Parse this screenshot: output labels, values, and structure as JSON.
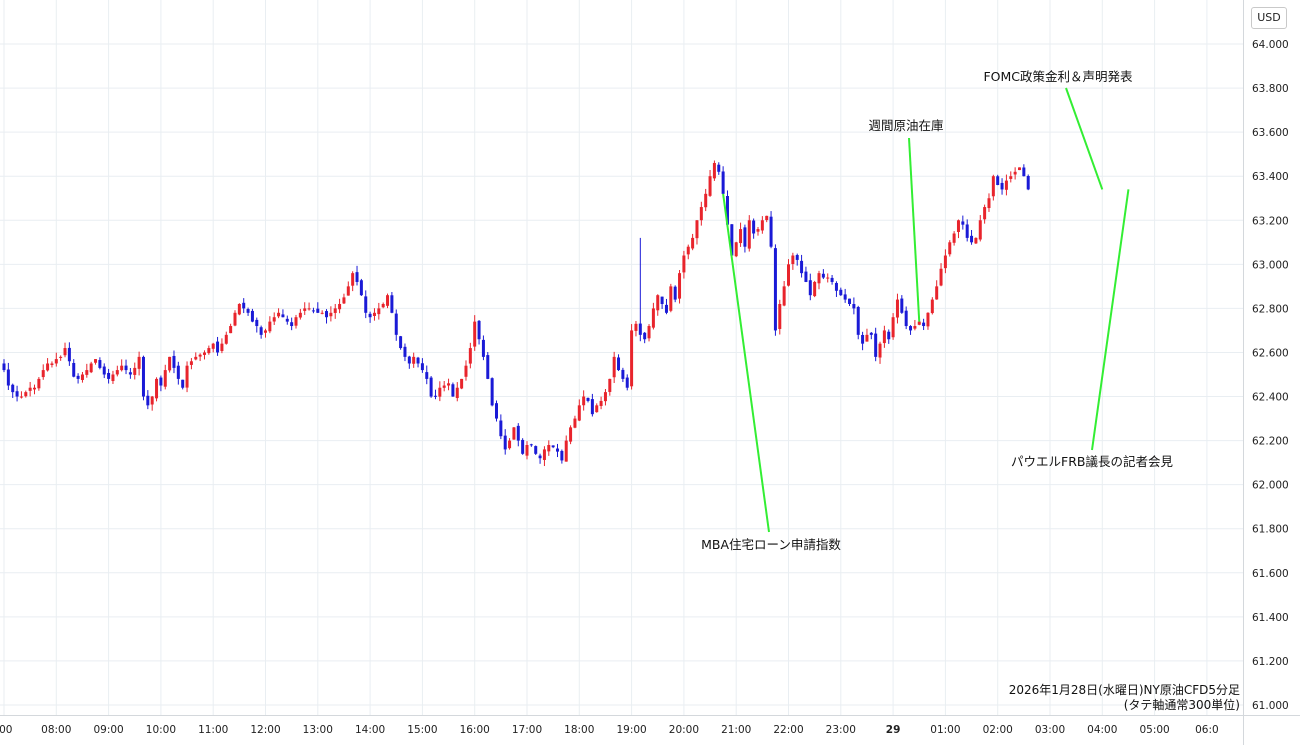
{
  "currency_label": "USD",
  "caption": {
    "line1": "2026年1月28日(水曜日)NY原油CFD5分足",
    "line2": "(タテ軸通常300単位)"
  },
  "colors": {
    "up": "#e8242c",
    "down": "#1a1ad6",
    "annotation_line": "#33ee33",
    "grid": "#e9eef2"
  },
  "chart_data": {
    "type": "candlestick",
    "title": "",
    "xlabel": "",
    "ylabel": "",
    "ylim": [
      61.0,
      64.0
    ],
    "y_ticks": [
      "64.000",
      "63.800",
      "63.600",
      "63.400",
      "63.200",
      "63.000",
      "62.800",
      "62.600",
      "62.400",
      "62.200",
      "62.000",
      "61.800",
      "61.600",
      "61.400",
      "61.200",
      "61.000"
    ],
    "x_ticks": [
      ":00",
      "08:00",
      "09:00",
      "10:00",
      "11:00",
      "12:00",
      "13:00",
      "14:00",
      "15:00",
      "16:00",
      "17:00",
      "18:00",
      "19:00",
      "20:00",
      "21:00",
      "22:00",
      "23:00",
      "29",
      "01:00",
      "02:00",
      "03:00",
      "04:00",
      "05:00",
      "06:0"
    ],
    "x_tick_hours": [
      7,
      8,
      9,
      10,
      11,
      12,
      13,
      14,
      15,
      16,
      17,
      18,
      19,
      20,
      21,
      22,
      23,
      24,
      25,
      26,
      27,
      28,
      29,
      30
    ],
    "grid": true,
    "start_time": "07:00",
    "interval_minutes": 5,
    "closes": [
      62.52,
      62.45,
      62.42,
      62.4,
      62.4,
      62.42,
      62.44,
      62.44,
      62.48,
      62.52,
      62.55,
      62.55,
      62.57,
      62.58,
      62.62,
      62.56,
      62.49,
      62.48,
      62.5,
      62.52,
      62.55,
      62.57,
      62.53,
      62.5,
      62.48,
      62.5,
      62.52,
      62.54,
      62.52,
      62.5,
      62.53,
      62.58,
      62.4,
      62.36,
      62.4,
      62.48,
      62.45,
      62.52,
      62.58,
      62.53,
      62.48,
      62.44,
      62.54,
      62.56,
      62.58,
      62.59,
      62.6,
      62.62,
      62.64,
      62.6,
      62.64,
      62.68,
      62.72,
      62.78,
      62.82,
      62.8,
      62.78,
      62.74,
      62.72,
      62.68,
      62.7,
      62.74,
      62.76,
      62.78,
      62.76,
      62.74,
      62.72,
      62.76,
      62.78,
      62.8,
      62.8,
      62.79,
      62.78,
      62.78,
      62.76,
      62.78,
      62.8,
      62.82,
      62.85,
      62.9,
      62.96,
      62.92,
      62.86,
      62.78,
      62.76,
      62.78,
      62.8,
      62.82,
      62.86,
      62.78,
      62.68,
      62.62,
      62.58,
      62.55,
      62.58,
      62.55,
      62.52,
      62.48,
      62.4,
      62.4,
      62.44,
      62.45,
      62.46,
      62.4,
      62.44,
      62.48,
      62.54,
      62.62,
      62.74,
      62.66,
      62.58,
      62.48,
      62.36,
      62.3,
      62.22,
      62.16,
      62.2,
      62.26,
      62.2,
      62.14,
      62.18,
      62.18,
      62.14,
      62.12,
      62.16,
      62.18,
      62.17,
      62.15,
      62.11,
      62.2,
      62.26,
      62.3,
      62.36,
      62.4,
      62.38,
      62.32,
      62.36,
      62.38,
      62.42,
      62.48,
      62.58,
      62.52,
      62.48,
      62.44,
      62.7,
      62.73,
      62.68,
      62.66,
      62.72,
      62.8,
      62.86,
      62.82,
      62.78,
      62.9,
      62.84,
      62.96,
      63.04,
      63.08,
      63.12,
      63.2,
      63.26,
      63.32,
      63.4,
      63.46,
      63.42,
      63.32,
      63.18,
      63.04,
      63.1,
      63.16,
      63.08,
      63.2,
      63.14,
      63.16,
      63.2,
      63.22,
      63.08,
      62.7,
      62.82,
      62.9,
      63.0,
      63.04,
      63.02,
      62.96,
      62.92,
      62.86,
      62.92,
      62.96,
      62.94,
      62.94,
      62.92,
      62.88,
      62.86,
      62.84,
      62.82,
      62.8,
      62.68,
      62.64,
      62.68,
      62.68,
      62.58,
      62.64,
      62.7,
      62.66,
      62.76,
      62.84,
      62.78,
      62.72,
      62.7,
      62.72,
      62.74,
      62.72,
      62.78,
      62.84,
      62.9,
      62.98,
      63.04,
      63.1,
      63.14,
      63.2,
      63.18,
      63.12,
      63.1,
      63.12,
      63.2,
      63.26,
      63.3,
      63.4,
      63.36,
      63.34,
      63.38,
      63.4,
      63.42,
      63.44,
      63.4,
      63.34
    ],
    "annotations": [
      {
        "label": "MBA住宅ローン申請指数",
        "time": "20:45"
      },
      {
        "label": "週間原油在庫",
        "time": "00:30"
      },
      {
        "label": "FOMC政策金利＆声明発表",
        "time": "04:00"
      },
      {
        "label": "パウエルFRB議長の記者会見",
        "time": "04:30"
      }
    ]
  }
}
